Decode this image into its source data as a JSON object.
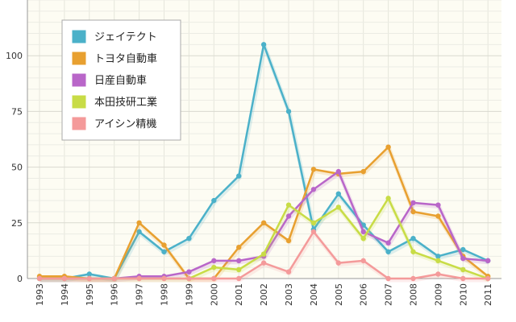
{
  "chart_data": {
    "type": "line",
    "title": "",
    "xlabel": "",
    "ylabel": "",
    "x": [
      "1993",
      "1994",
      "1995",
      "1996",
      "1997",
      "1998",
      "1999",
      "2000",
      "2001",
      "2002",
      "2003",
      "2004",
      "2005",
      "2006",
      "2007",
      "2008",
      "2009",
      "2010",
      "2011"
    ],
    "ylim": [
      0,
      125
    ],
    "yticks": [
      0,
      25,
      50,
      75,
      100
    ],
    "grid": true,
    "legend_position": "top-left",
    "series": [
      {
        "name": "ジェイテクト",
        "color": "#4bb1c9",
        "values": [
          0,
          0,
          2,
          0,
          21,
          12,
          18,
          35,
          46,
          105,
          75,
          22,
          38,
          24,
          12,
          18,
          10,
          13,
          8
        ]
      },
      {
        "name": "トヨタ自動車",
        "color": "#e8a030",
        "values": [
          1,
          1,
          0,
          0,
          25,
          15,
          0,
          0,
          14,
          25,
          17,
          49,
          47,
          48,
          59,
          30,
          28,
          10,
          1
        ]
      },
      {
        "name": "日産自動車",
        "color": "#b966c9",
        "values": [
          0,
          0,
          0,
          0,
          1,
          1,
          3,
          8,
          8,
          10,
          28,
          40,
          48,
          21,
          16,
          34,
          33,
          9,
          8
        ]
      },
      {
        "name": "本田技研工業",
        "color": "#c8dc46",
        "values": [
          0,
          0,
          0,
          0,
          0,
          0,
          0,
          5,
          4,
          11,
          33,
          25,
          32,
          18,
          36,
          12,
          8,
          4,
          0
        ]
      },
      {
        "name": "アイシン精機",
        "color": "#f49a9a",
        "values": [
          0,
          0,
          0,
          0,
          0,
          0,
          0,
          0,
          0,
          7,
          3,
          21,
          7,
          8,
          0,
          0,
          2,
          0,
          0
        ]
      }
    ]
  }
}
